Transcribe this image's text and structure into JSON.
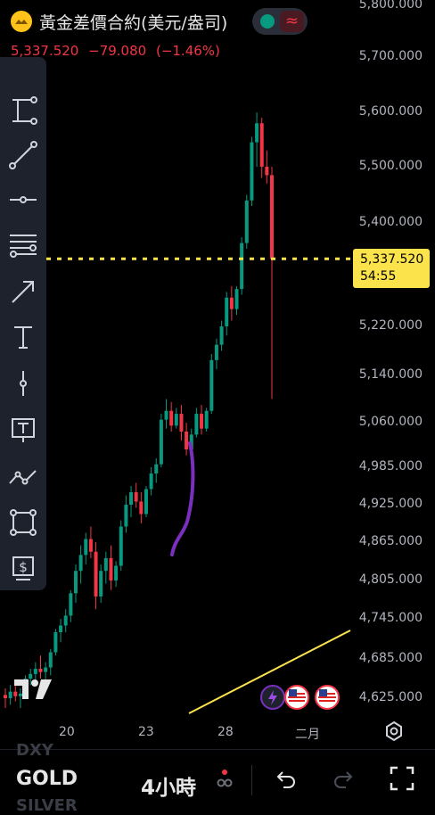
{
  "header": {
    "title": "黃金差價合約(美元/盎司)",
    "last_price": "5,337.520",
    "change": "−79.080",
    "change_pct": "(−1.46%)",
    "status_icon": "market-open-dot",
    "wave_icon": "≈"
  },
  "toolbar": {
    "tools": [
      "horizontal-ray-icon",
      "trend-line-icon",
      "horizontal-line-icon",
      "parallel-channel-icon",
      "arrow-icon",
      "text-icon",
      "vertical-line-icon",
      "text-note-icon",
      "path-icon",
      "rectangle-icon",
      "price-range-icon"
    ]
  },
  "price_scale": {
    "labels": [
      "5,800.000",
      "5,700.000",
      "5,600.000",
      "5,500.000",
      "5,400.000",
      "5,220.000",
      "5,140.000",
      "5,060.000",
      "4,985.000",
      "4,925.000",
      "4,865.000",
      "4,805.000",
      "4,745.000",
      "4,685.000",
      "4,625.000"
    ],
    "current_price": "5,337.520",
    "countdown": "54:55"
  },
  "time_axis": {
    "labels": [
      "20",
      "23",
      "28",
      "二月"
    ]
  },
  "bottom_bar": {
    "symbols": [
      "DXY",
      "GOLD",
      "SILVER"
    ],
    "interval": "4小時",
    "undo_icon": "undo-icon",
    "redo_icon": "redo-icon",
    "fullscreen_icon": "fullscreen-icon"
  },
  "colors": {
    "up": "#089981",
    "down": "#f23645",
    "price_line": "#fbe34c",
    "trend_line": "#fbe34c",
    "drawing": "#7b2fbf"
  },
  "chart_data": {
    "type": "candlestick",
    "timeframe": "4小時",
    "ylim": [
      4600,
      5820
    ],
    "x_ticks": [
      "20",
      "23",
      "28",
      "二月"
    ],
    "last": 5337.52,
    "candles": [
      [
        4630,
        4640,
        4610,
        4625
      ],
      [
        4625,
        4645,
        4615,
        4635
      ],
      [
        4635,
        4650,
        4620,
        4628
      ],
      [
        4628,
        4640,
        4610,
        4632
      ],
      [
        4632,
        4660,
        4625,
        4655
      ],
      [
        4655,
        4670,
        4645,
        4662
      ],
      [
        4662,
        4680,
        4650,
        4670
      ],
      [
        4670,
        4690,
        4655,
        4665
      ],
      [
        4665,
        4680,
        4645,
        4672
      ],
      [
        4672,
        4700,
        4660,
        4695
      ],
      [
        4695,
        4730,
        4690,
        4725
      ],
      [
        4725,
        4745,
        4710,
        4735
      ],
      [
        4735,
        4760,
        4725,
        4750
      ],
      [
        4750,
        4790,
        4740,
        4785
      ],
      [
        4785,
        4830,
        4770,
        4820
      ],
      [
        4820,
        4860,
        4800,
        4845
      ],
      [
        4845,
        4880,
        4830,
        4870
      ],
      [
        4870,
        4890,
        4840,
        4850
      ],
      [
        4850,
        4865,
        4760,
        4780
      ],
      [
        4780,
        4830,
        4770,
        4820
      ],
      [
        4820,
        4850,
        4800,
        4840
      ],
      [
        4840,
        4860,
        4790,
        4805
      ],
      [
        4805,
        4835,
        4795,
        4828
      ],
      [
        4828,
        4900,
        4820,
        4890
      ],
      [
        4890,
        4940,
        4880,
        4925
      ],
      [
        4925,
        4955,
        4905,
        4945
      ],
      [
        4945,
        4960,
        4920,
        4930
      ],
      [
        4930,
        4945,
        4895,
        4910
      ],
      [
        4910,
        4955,
        4905,
        4950
      ],
      [
        4950,
        4985,
        4940,
        4975
      ],
      [
        4975,
        5000,
        4960,
        4990
      ],
      [
        4990,
        5075,
        4985,
        5065
      ],
      [
        5065,
        5100,
        5050,
        5080
      ],
      [
        5080,
        5095,
        5045,
        5055
      ],
      [
        5055,
        5085,
        5050,
        5075
      ],
      [
        5075,
        5090,
        5030,
        5045
      ],
      [
        5045,
        5060,
        5005,
        5015
      ],
      [
        5015,
        5050,
        5000,
        5040
      ],
      [
        5040,
        5085,
        5035,
        5075
      ],
      [
        5075,
        5090,
        5040,
        5050
      ],
      [
        5050,
        5085,
        5045,
        5080
      ],
      [
        5080,
        5175,
        5075,
        5165
      ],
      [
        5165,
        5200,
        5150,
        5190
      ],
      [
        5190,
        5230,
        5180,
        5220
      ],
      [
        5220,
        5280,
        5205,
        5270
      ],
      [
        5270,
        5290,
        5230,
        5250
      ],
      [
        5250,
        5290,
        5240,
        5285
      ],
      [
        5285,
        5375,
        5275,
        5365
      ],
      [
        5365,
        5450,
        5355,
        5440
      ],
      [
        5440,
        5555,
        5430,
        5545
      ],
      [
        5545,
        5600,
        5500,
        5580
      ],
      [
        5580,
        5590,
        5480,
        5500
      ],
      [
        5500,
        5530,
        5470,
        5485
      ],
      [
        5485,
        5500,
        5100,
        5337.52
      ]
    ],
    "horizontal_price_line": 5337.52,
    "trend_line": {
      "from": [
        4605,
        "left"
      ],
      "to": [
        4735,
        "right"
      ]
    }
  }
}
